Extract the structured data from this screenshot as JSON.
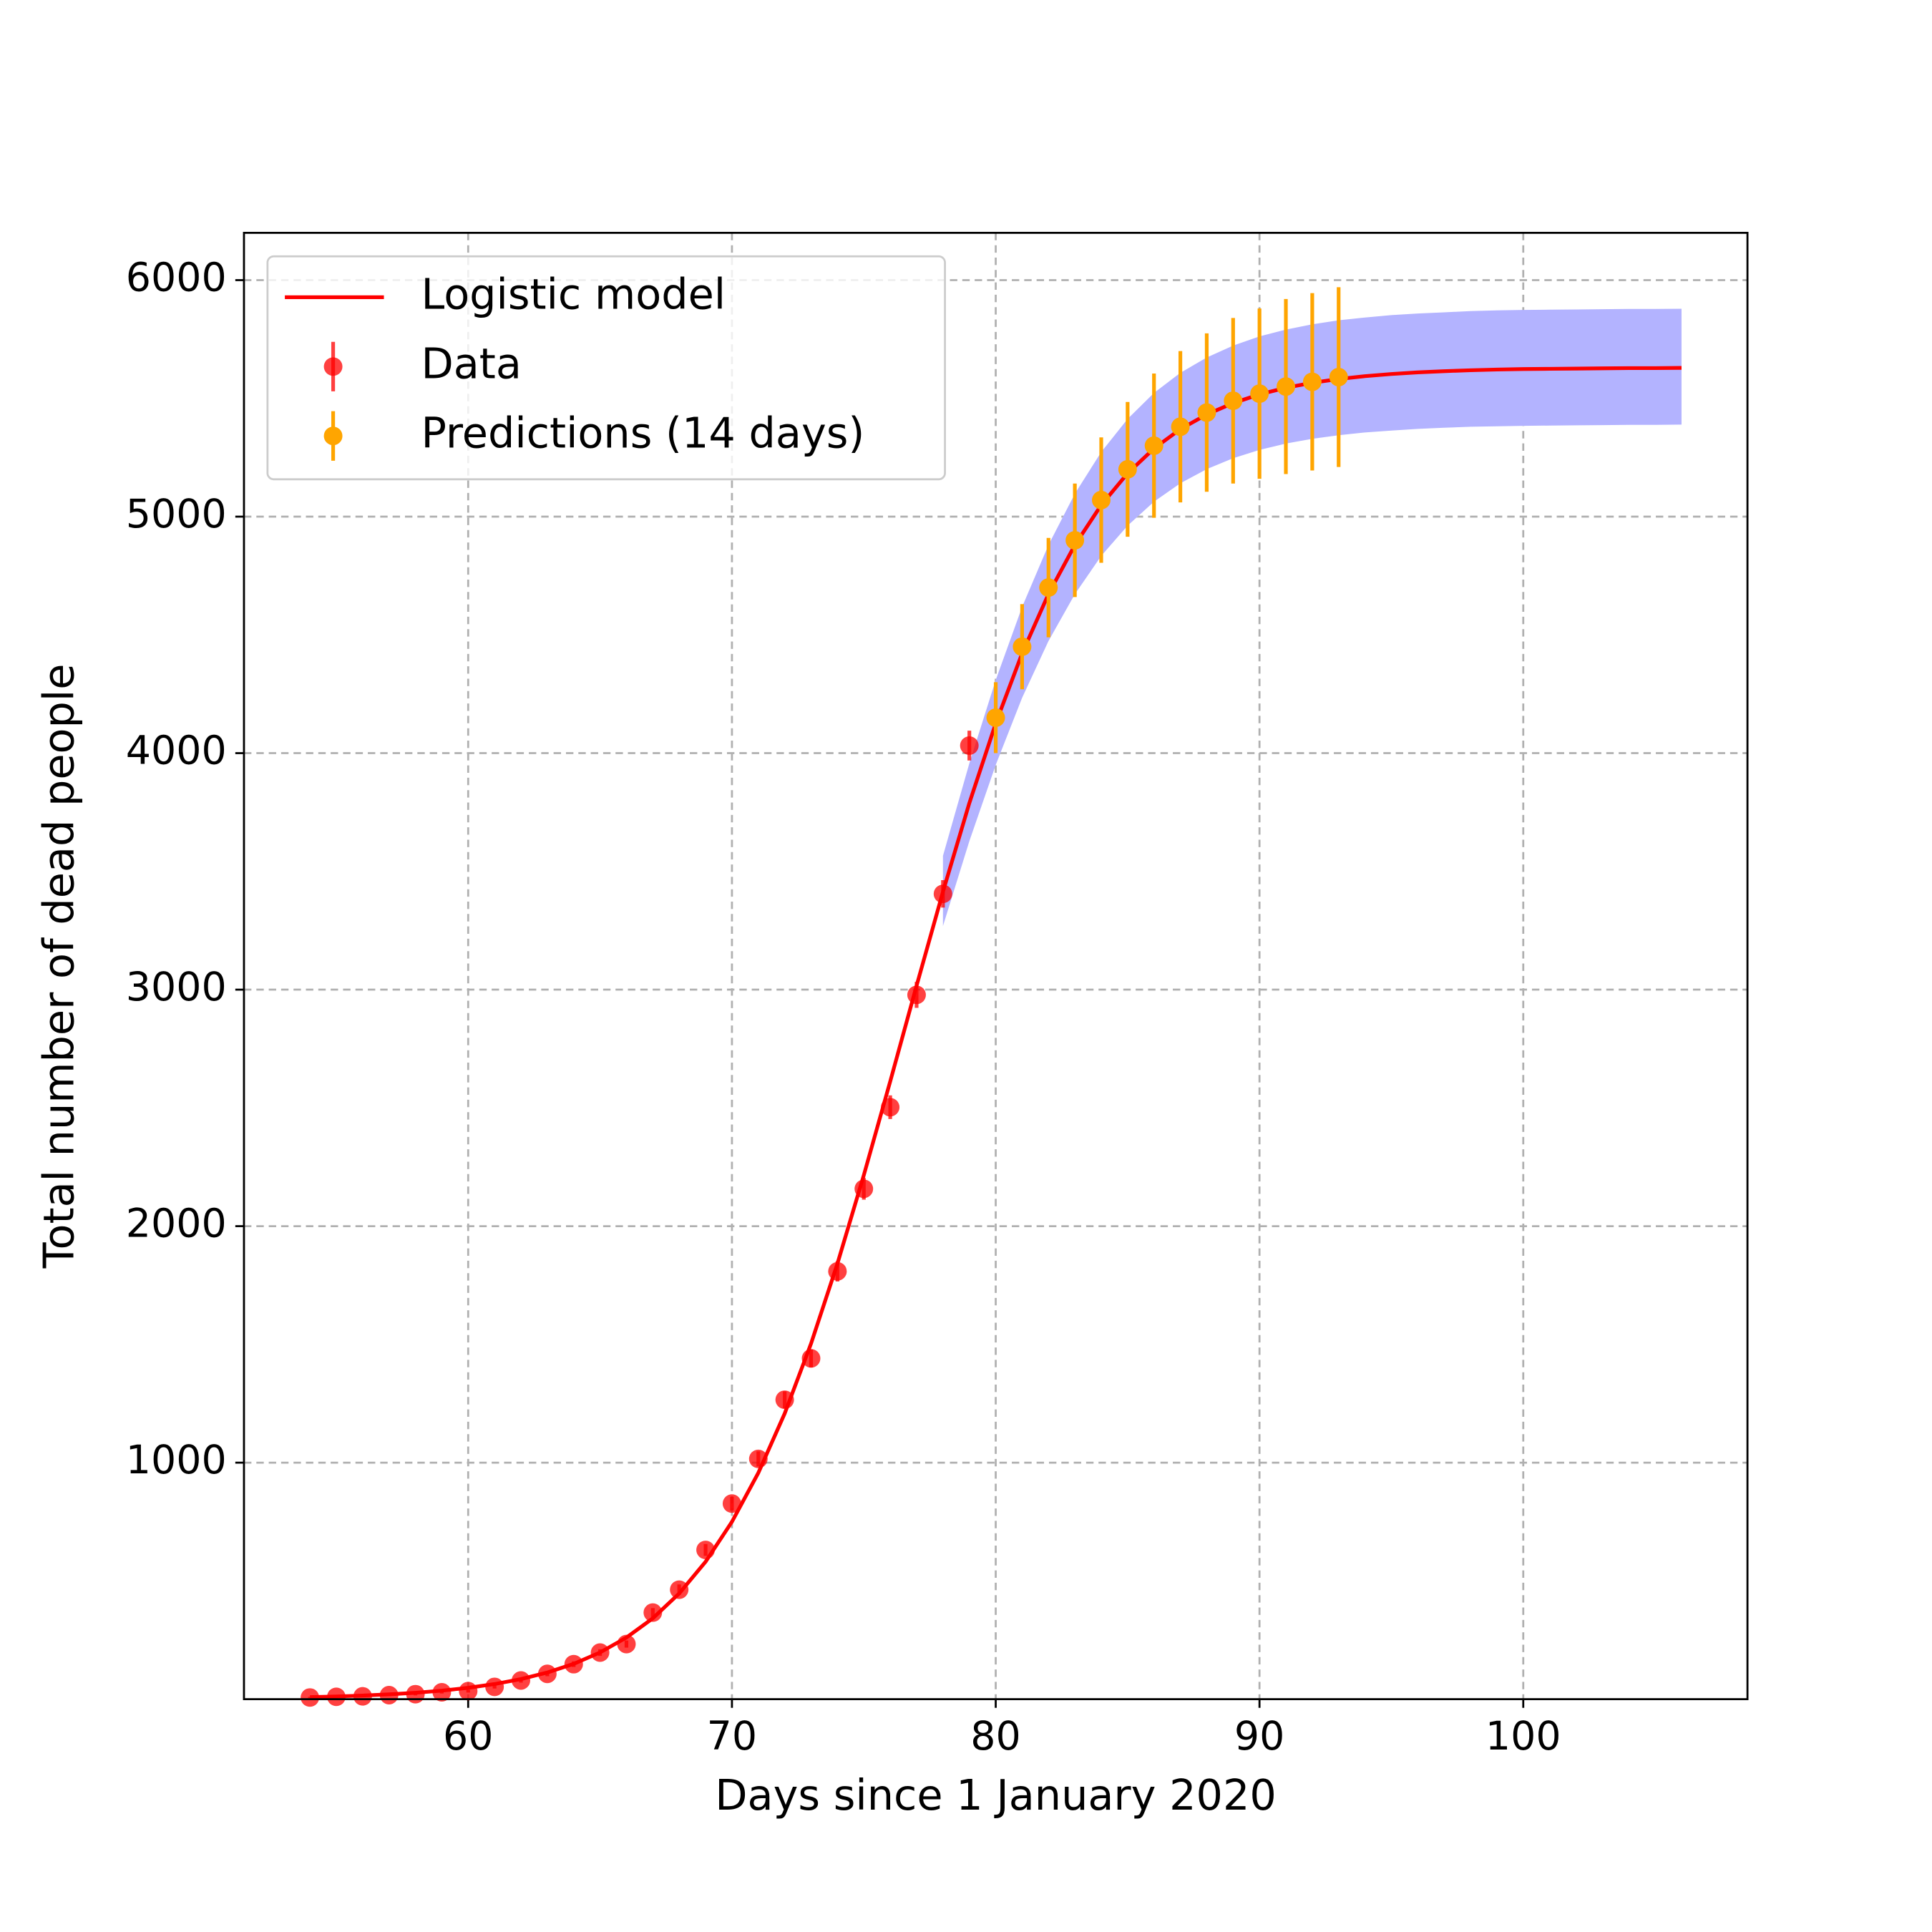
{
  "chart_data": {
    "type": "line",
    "xlabel": "Days since 1 January 2020",
    "ylabel": "Total number of dead people",
    "xlim": [
      51.5,
      108.5
    ],
    "ylim": [
      0,
      6200
    ],
    "xticks": [
      60,
      70,
      80,
      90,
      100
    ],
    "yticks": [
      1000,
      2000,
      3000,
      4000,
      5000,
      6000
    ],
    "grid": true,
    "legend": "upper left",
    "band": {
      "color": "#b3b3ff",
      "x": [
        78,
        79,
        80,
        81,
        82,
        83,
        84,
        85,
        86,
        87,
        88,
        89,
        90,
        91,
        92,
        93,
        94,
        95,
        96,
        97,
        98,
        99,
        100,
        101,
        102,
        103,
        104,
        105,
        106
      ],
      "upper": [
        3566,
        3957,
        4309,
        4618,
        4880,
        5097,
        5273,
        5413,
        5523,
        5608,
        5673,
        5723,
        5762,
        5791,
        5813,
        5830,
        5842,
        5852,
        5859,
        5864,
        5869,
        5872,
        5874,
        5875,
        5876,
        5877,
        5878,
        5878,
        5879
      ],
      "lower": [
        3269,
        3628,
        3950,
        4234,
        4474,
        4672,
        4834,
        4962,
        5063,
        5141,
        5201,
        5247,
        5282,
        5309,
        5329,
        5344,
        5356,
        5364,
        5371,
        5376,
        5380,
        5382,
        5384,
        5385,
        5386,
        5387,
        5388,
        5388,
        5389
      ]
    },
    "series": [
      {
        "name": "Logistic model",
        "kind": "line",
        "color": "#ff0000",
        "x": [
          54,
          55,
          56,
          57,
          58,
          59,
          60,
          61,
          62,
          63,
          64,
          65,
          66,
          67,
          68,
          69,
          70,
          71,
          72,
          73,
          74,
          75,
          76,
          77,
          78,
          79,
          80,
          81,
          82,
          83,
          84,
          85,
          86,
          87,
          88,
          89,
          90,
          91,
          92,
          93,
          94,
          95,
          96,
          97,
          98,
          99,
          100,
          101,
          102,
          103,
          104,
          105,
          106
        ],
        "values": [
          8.6,
          11.5,
          15.3,
          20.3,
          27.1,
          36.1,
          48,
          63.9,
          84.9,
          112.7,
          149.3,
          197.5,
          260.6,
          342,
          447,
          581,
          750,
          957,
          1208,
          1504,
          1842,
          2216,
          2612,
          3017,
          3414,
          3789,
          4126,
          4422,
          4673,
          4880,
          5049,
          5183,
          5288,
          5370,
          5432,
          5480,
          5517,
          5545,
          5566,
          5582,
          5594,
          5603,
          5610,
          5615,
          5619,
          5622,
          5624,
          5625,
          5626,
          5627,
          5628,
          5628,
          5629
        ]
      },
      {
        "name": "Data",
        "kind": "errorbar",
        "color": "#ff0000",
        "x": [
          54,
          55,
          56,
          57,
          58,
          59,
          60,
          61,
          62,
          63,
          64,
          65,
          66,
          67,
          68,
          69,
          70,
          71,
          72,
          73,
          74,
          75,
          76,
          77,
          78,
          79
        ],
        "values": [
          7,
          10,
          12,
          17,
          21,
          29,
          34,
          52,
          79,
          107,
          148,
          197,
          233,
          366,
          463,
          631,
          827,
          1016,
          1266,
          1441,
          1809,
          2158,
          2503,
          2978,
          3405,
          4032
        ],
        "errors": [
          3,
          3,
          3,
          4,
          5,
          5,
          6,
          7,
          9,
          10,
          12,
          14,
          15,
          19,
          22,
          25,
          29,
          32,
          36,
          38,
          43,
          46,
          50,
          55,
          58,
          63
        ]
      },
      {
        "name": "Predictions (14 days)",
        "kind": "errorbar",
        "color": "#ffa500",
        "x": [
          80,
          81,
          82,
          83,
          84,
          85,
          86,
          87,
          88,
          89,
          90,
          91,
          92,
          93
        ],
        "values": [
          4150,
          4450,
          4700,
          4900,
          5070,
          5200,
          5300,
          5380,
          5440,
          5490,
          5520,
          5550,
          5570,
          5590
        ],
        "errors": [
          150,
          180,
          210,
          240,
          265,
          285,
          305,
          320,
          335,
          350,
          360,
          370,
          375,
          380
        ]
      }
    ]
  }
}
